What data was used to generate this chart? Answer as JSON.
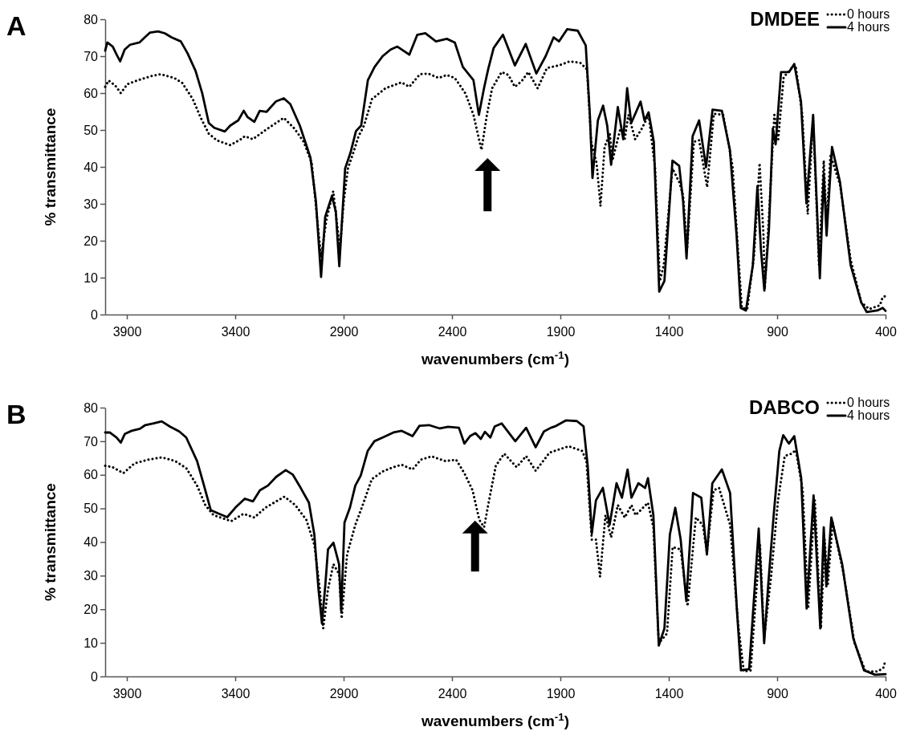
{
  "chart_data": [
    {
      "type": "line",
      "title": "A",
      "xlabel": "wavenumbers (cm$^{-1}$)",
      "ylabel": "% transmittance",
      "legend_title": "DMDEE",
      "legend": "top right",
      "xlim": [
        4000,
        400
      ],
      "ylim": [
        0,
        80
      ],
      "xticks": [
        3900,
        3400,
        2900,
        2400,
        1900,
        1400,
        900,
        400
      ],
      "yticks": [
        0,
        10,
        20,
        30,
        40,
        50,
        60,
        70,
        80
      ],
      "series": [
        {
          "name": "0 hours",
          "color": "#000000",
          "line_style": "dotted",
          "x": [
            4000,
            3984,
            3953,
            3928,
            3898,
            3848,
            3787,
            3744,
            3682,
            3645,
            3596,
            3559,
            3522,
            3485,
            3423,
            3374,
            3356,
            3319,
            3250,
            3176,
            3127,
            3084,
            3047,
            3023,
            3004,
            2979,
            2948,
            2917,
            2899,
            2880,
            2855,
            2831,
            2806,
            2769,
            2707,
            2633,
            2597,
            2548,
            2510,
            2461,
            2424,
            2387,
            2338,
            2301,
            2264,
            2239,
            2215,
            2171,
            2140,
            2110,
            2079,
            2048,
            2005,
            1962,
            1906,
            1857,
            1808,
            1777,
            1758,
            1733,
            1715,
            1696,
            1672,
            1660,
            1623,
            1604,
            1586,
            1555,
            1524,
            1493,
            1463,
            1441,
            1423,
            1383,
            1352,
            1334,
            1315,
            1284,
            1260,
            1223,
            1192,
            1149,
            1106,
            1081,
            1063,
            1038,
            1006,
            981,
            963,
            957,
            938,
            913,
            895,
            870,
            833,
            815,
            784,
            759,
            734,
            707,
            685,
            672,
            654,
            610,
            561,
            512,
            475,
            426,
            413,
            400
          ],
          "values": [
            61.7,
            63.4,
            62.0,
            60.0,
            62.4,
            63.5,
            64.6,
            65.1,
            64.1,
            62.8,
            58.4,
            53.3,
            49.0,
            47.2,
            45.9,
            47.5,
            48.3,
            47.5,
            50.4,
            53.3,
            50.4,
            46.8,
            41.0,
            26.5,
            15.6,
            25.8,
            33.4,
            17.8,
            30.8,
            39.6,
            43.9,
            48.3,
            51.2,
            58.4,
            61.3,
            62.9,
            61.7,
            65.1,
            65.3,
            64.1,
            64.9,
            64.1,
            59.9,
            54.1,
            44.6,
            54.1,
            61.3,
            65.7,
            64.9,
            61.7,
            63.2,
            65.7,
            61.3,
            66.8,
            67.5,
            68.6,
            68.2,
            66.4,
            46.8,
            41.0,
            29.4,
            45.4,
            49.0,
            41.7,
            50.4,
            47.2,
            54.1,
            47.5,
            50.4,
            54.1,
            39.6,
            9.1,
            13.4,
            39.6,
            35.9,
            32.3,
            17.8,
            46.8,
            47.2,
            34.5,
            54.4,
            54.1,
            40.3,
            17.8,
            1.8,
            1.5,
            16.3,
            41.0,
            21.4,
            6.9,
            26.5,
            54.1,
            47.5,
            64.3,
            66.8,
            67.5,
            54.1,
            27.2,
            52.6,
            13.4,
            41.7,
            25.0,
            43.2,
            35.2,
            14.9,
            3.3,
            1.5,
            2.5,
            4.7,
            5.0
          ]
        },
        {
          "name": "4 hours",
          "color": "#000000",
          "line_style": "solid",
          "x": [
            4000,
            3990,
            3965,
            3947,
            3931,
            3910,
            3885,
            3842,
            3817,
            3793,
            3756,
            3725,
            3694,
            3651,
            3620,
            3583,
            3552,
            3522,
            3497,
            3448,
            3423,
            3386,
            3361,
            3343,
            3312,
            3287,
            3256,
            3213,
            3176,
            3146,
            3102,
            3053,
            3028,
            3004,
            2985,
            2954,
            2936,
            2920,
            2893,
            2868,
            2843,
            2819,
            2788,
            2757,
            2720,
            2683,
            2652,
            2597,
            2560,
            2523,
            2474,
            2424,
            2387,
            2350,
            2301,
            2276,
            2252,
            2233,
            2208,
            2165,
            2110,
            2060,
            2011,
            1968,
            1931,
            1906,
            1869,
            1820,
            1783,
            1764,
            1752,
            1727,
            1703,
            1684,
            1666,
            1635,
            1610,
            1592,
            1573,
            1530,
            1512,
            1493,
            1469,
            1444,
            1420,
            1383,
            1352,
            1334,
            1318,
            1290,
            1260,
            1228,
            1198,
            1155,
            1118,
            1087,
            1068,
            1044,
            1012,
            991,
            975,
            959,
            938,
            920,
            907,
            882,
            845,
            821,
            790,
            765,
            734,
            703,
            685,
            672,
            647,
            610,
            561,
            512,
            487,
            438,
            413,
            400
          ],
          "values": [
            71.5,
            73.7,
            72.6,
            70.4,
            68.6,
            71.8,
            73.1,
            73.7,
            75.1,
            76.4,
            76.7,
            76.2,
            75.1,
            74.0,
            70.8,
            66.0,
            59.9,
            51.9,
            50.6,
            49.6,
            51.2,
            52.6,
            55.2,
            53.5,
            52.2,
            55.2,
            54.9,
            57.7,
            58.6,
            57.0,
            51.2,
            42.5,
            30.8,
            10.2,
            26.5,
            32.1,
            27.9,
            13.1,
            39.6,
            43.9,
            49.7,
            51.2,
            63.5,
            67.1,
            70.0,
            71.8,
            72.6,
            70.4,
            75.8,
            76.2,
            74.0,
            74.7,
            73.7,
            67.1,
            63.5,
            54.1,
            61.4,
            66.5,
            72.2,
            75.8,
            67.5,
            73.3,
            65.3,
            70.0,
            75.1,
            74.0,
            77.3,
            76.9,
            72.9,
            54.1,
            37.0,
            52.6,
            56.6,
            51.2,
            40.6,
            56.2,
            47.5,
            61.3,
            51.9,
            57.7,
            52.6,
            54.8,
            46.8,
            6.2,
            9.1,
            41.7,
            40.3,
            30.8,
            15.2,
            48.3,
            52.6,
            39.9,
            55.5,
            55.2,
            44.6,
            21.4,
            1.8,
            1.1,
            13.4,
            34.8,
            17.8,
            6.5,
            22.9,
            50.4,
            46.1,
            65.7,
            65.7,
            67.9,
            57.7,
            30.1,
            54.1,
            9.8,
            38.1,
            21.4,
            45.4,
            35.9,
            13.4,
            3.3,
            0.7,
            1.1,
            1.8,
            1.0
          ]
        }
      ]
    },
    {
      "type": "line",
      "title": "B",
      "xlabel": "wavenumbers (cm$^{-1}$)",
      "ylabel": "% transmittance",
      "legend_title": "DABCO",
      "legend": "top right",
      "xlim": [
        4000,
        400
      ],
      "ylim": [
        0,
        80
      ],
      "xticks": [
        3900,
        3400,
        2900,
        2400,
        1900,
        1400,
        900,
        400
      ],
      "yticks": [
        0,
        10,
        20,
        30,
        40,
        50,
        60,
        70,
        80
      ],
      "series": [
        {
          "name": "0 hours",
          "color": "#000000",
          "line_style": "dotted",
          "x": [
            4000,
            3966,
            3916,
            3865,
            3802,
            3739,
            3677,
            3626,
            3576,
            3538,
            3500,
            3450,
            3419,
            3362,
            3312,
            3261,
            3211,
            3173,
            3123,
            3072,
            3035,
            3010,
            2994,
            2972,
            2947,
            2921,
            2909,
            2884,
            2846,
            2808,
            2770,
            2720,
            2670,
            2632,
            2582,
            2544,
            2494,
            2431,
            2381,
            2343,
            2305,
            2274,
            2252,
            2229,
            2198,
            2159,
            2102,
            2058,
            2014,
            1950,
            1862,
            1799,
            1780,
            1755,
            1736,
            1717,
            1692,
            1666,
            1635,
            1603,
            1572,
            1553,
            1496,
            1471,
            1446,
            1408,
            1382,
            1345,
            1313,
            1275,
            1243,
            1224,
            1193,
            1168,
            1117,
            1079,
            1054,
            1022,
            997,
            979,
            960,
            928,
            896,
            865,
            833,
            814,
            782,
            757,
            726,
            698,
            681,
            666,
            644,
            593,
            543,
            492,
            435,
            410,
            400
          ],
          "values": [
            62.7,
            62.3,
            60.5,
            63.4,
            64.5,
            65.2,
            64.1,
            62.0,
            56.8,
            51.0,
            48.0,
            46.9,
            46.2,
            48.4,
            47.3,
            50.2,
            52.1,
            53.5,
            51.0,
            46.6,
            39.2,
            26.0,
            14.3,
            26.0,
            33.4,
            30.5,
            17.2,
            36.3,
            45.1,
            51.7,
            58.7,
            61.0,
            62.3,
            63.0,
            61.6,
            64.5,
            65.5,
            64.1,
            64.5,
            60.5,
            55.4,
            46.6,
            44.4,
            52.4,
            62.7,
            66.3,
            62.3,
            65.6,
            61.2,
            66.6,
            68.5,
            67.1,
            64.1,
            40.7,
            40.7,
            29.7,
            48.0,
            41.4,
            51.0,
            47.3,
            51.0,
            48.0,
            51.7,
            44.4,
            9.9,
            12.8,
            38.5,
            37.8,
            20.9,
            47.3,
            45.1,
            37.1,
            55.4,
            56.1,
            45.1,
            15.0,
            1.5,
            1.8,
            24.6,
            39.2,
            11.4,
            29.7,
            52.4,
            65.6,
            66.3,
            67.4,
            55.4,
            20.2,
            52.4,
            14.3,
            40.7,
            27.5,
            45.8,
            30.4,
            9.9,
            1.5,
            1.5,
            2.6,
            4.8
          ]
        },
        {
          "name": "4 hours",
          "color": "#000000",
          "line_style": "solid",
          "x": [
            4000,
            3979,
            3947,
            3928,
            3909,
            3878,
            3840,
            3815,
            3777,
            3739,
            3702,
            3658,
            3626,
            3576,
            3544,
            3513,
            3475,
            3437,
            3400,
            3356,
            3318,
            3286,
            3249,
            3211,
            3167,
            3135,
            3098,
            3060,
            3035,
            3016,
            3000,
            2984,
            2972,
            2947,
            2921,
            2911,
            2896,
            2871,
            2846,
            2821,
            2789,
            2758,
            2720,
            2670,
            2632,
            2582,
            2550,
            2506,
            2456,
            2418,
            2368,
            2343,
            2317,
            2292,
            2267,
            2248,
            2223,
            2203,
            2171,
            2108,
            2058,
            2014,
            1976,
            1944,
            1925,
            1875,
            1824,
            1793,
            1774,
            1755,
            1736,
            1704,
            1673,
            1641,
            1616,
            1590,
            1572,
            1540,
            1509,
            1496,
            1471,
            1446,
            1420,
            1395,
            1370,
            1345,
            1319,
            1288,
            1250,
            1224,
            1199,
            1155,
            1117,
            1086,
            1067,
            1029,
            1004,
            985,
            960,
            941,
            916,
            890,
            872,
            846,
            821,
            789,
            764,
            732,
            701,
            685,
            673,
            650,
            600,
            549,
            499,
            448,
            400
          ],
          "values": [
            72.6,
            72.6,
            71.1,
            69.6,
            72.2,
            73.1,
            73.7,
            74.8,
            75.3,
            75.9,
            74.4,
            72.9,
            71.1,
            64.1,
            56.8,
            49.5,
            48.4,
            47.4,
            50.2,
            52.9,
            52.1,
            55.4,
            56.8,
            59.4,
            61.4,
            60.1,
            56.1,
            51.7,
            42.2,
            26.0,
            15.8,
            27.5,
            37.8,
            39.8,
            33.4,
            19.4,
            45.8,
            50.2,
            56.8,
            59.8,
            67.1,
            70.0,
            71.1,
            72.6,
            73.1,
            71.5,
            74.6,
            74.8,
            73.8,
            74.3,
            74.0,
            69.3,
            71.5,
            72.4,
            70.7,
            72.8,
            71.1,
            74.4,
            75.3,
            70.0,
            74.0,
            68.2,
            72.9,
            74.0,
            74.4,
            76.2,
            76.0,
            74.4,
            62.7,
            42.5,
            52.4,
            56.1,
            45.1,
            57.5,
            53.2,
            61.6,
            53.2,
            57.5,
            56.1,
            59.0,
            48.0,
            9.2,
            14.3,
            42.2,
            50.2,
            40.7,
            22.4,
            54.6,
            53.2,
            36.3,
            57.5,
            61.6,
            54.6,
            20.2,
            1.8,
            2.2,
            26.0,
            44.0,
            9.9,
            27.5,
            48.0,
            67.1,
            71.8,
            69.3,
            71.5,
            59.0,
            20.2,
            53.9,
            14.3,
            44.4,
            26.8,
            47.3,
            33.4,
            11.4,
            1.8,
            0.5,
            0.7
          ]
        }
      ]
    }
  ]
}
